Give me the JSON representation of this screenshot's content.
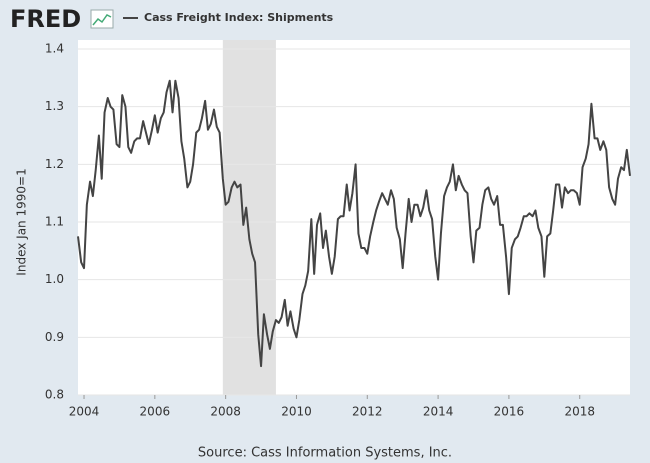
{
  "logo": "FRED",
  "chart_data": {
    "type": "line",
    "y_label": "Index Jan 1990=1",
    "source": "Source: Cass Information Systems, Inc.",
    "xlim": [
      2003.83,
      2019.42
    ],
    "xticks": [
      2004,
      2006,
      2008,
      2010,
      2012,
      2014,
      2016,
      2018
    ],
    "ylim": [
      0.8,
      1.4
    ],
    "yticks": [
      0.8,
      0.9,
      {
        "value": 1,
        "label": "1.0"
      },
      1.1,
      1.2,
      1.3,
      1.4
    ],
    "grid": true,
    "shaded_periods": [
      [
        2007.92,
        2009.42
      ]
    ],
    "x": [
      2003.83,
      2003.92,
      2004.0,
      2004.08,
      2004.17,
      2004.25,
      2004.33,
      2004.42,
      2004.5,
      2004.58,
      2004.67,
      2004.75,
      2004.83,
      2004.92,
      2005.0,
      2005.08,
      2005.17,
      2005.25,
      2005.33,
      2005.42,
      2005.5,
      2005.58,
      2005.67,
      2005.75,
      2005.83,
      2005.92,
      2006.0,
      2006.08,
      2006.17,
      2006.25,
      2006.33,
      2006.42,
      2006.5,
      2006.58,
      2006.67,
      2006.75,
      2006.83,
      2006.92,
      2007.0,
      2007.08,
      2007.17,
      2007.25,
      2007.33,
      2007.42,
      2007.5,
      2007.58,
      2007.67,
      2007.75,
      2007.83,
      2007.92,
      2008.0,
      2008.08,
      2008.17,
      2008.25,
      2008.33,
      2008.42,
      2008.5,
      2008.58,
      2008.67,
      2008.75,
      2008.83,
      2008.92,
      2009.0,
      2009.08,
      2009.17,
      2009.25,
      2009.33,
      2009.42,
      2009.5,
      2009.58,
      2009.67,
      2009.75,
      2009.83,
      2009.92,
      2010.0,
      2010.08,
      2010.17,
      2010.25,
      2010.33,
      2010.42,
      2010.5,
      2010.58,
      2010.67,
      2010.75,
      2010.83,
      2010.92,
      2011.0,
      2011.08,
      2011.17,
      2011.25,
      2011.33,
      2011.42,
      2011.5,
      2011.58,
      2011.67,
      2011.75,
      2011.83,
      2011.92,
      2012.0,
      2012.08,
      2012.17,
      2012.25,
      2012.33,
      2012.42,
      2012.5,
      2012.58,
      2012.67,
      2012.75,
      2012.83,
      2012.92,
      2013.0,
      2013.08,
      2013.17,
      2013.25,
      2013.33,
      2013.42,
      2013.5,
      2013.58,
      2013.67,
      2013.75,
      2013.83,
      2013.92,
      2014.0,
      2014.08,
      2014.17,
      2014.25,
      2014.33,
      2014.42,
      2014.5,
      2014.58,
      2014.67,
      2014.75,
      2014.83,
      2014.92,
      2015.0,
      2015.08,
      2015.17,
      2015.25,
      2015.33,
      2015.42,
      2015.5,
      2015.58,
      2015.67,
      2015.75,
      2015.83,
      2015.92,
      2016.0,
      2016.08,
      2016.17,
      2016.25,
      2016.33,
      2016.42,
      2016.5,
      2016.58,
      2016.67,
      2016.75,
      2016.83,
      2016.92,
      2017.0,
      2017.08,
      2017.17,
      2017.25,
      2017.33,
      2017.42,
      2017.5,
      2017.58,
      2017.67,
      2017.75,
      2017.83,
      2017.92,
      2018.0,
      2018.08,
      2018.17,
      2018.25,
      2018.33,
      2018.42,
      2018.5,
      2018.58,
      2018.67,
      2018.75,
      2018.83,
      2018.92,
      2019.0,
      2019.08,
      2019.17,
      2019.25,
      2019.33,
      2019.42
    ],
    "series": [
      {
        "name": "Cass Freight Index: Shipments",
        "color": "#444444",
        "values": [
          1.075,
          1.03,
          1.02,
          1.13,
          1.17,
          1.145,
          1.19,
          1.25,
          1.175,
          1.29,
          1.315,
          1.3,
          1.295,
          1.235,
          1.23,
          1.32,
          1.3,
          1.23,
          1.22,
          1.24,
          1.245,
          1.245,
          1.275,
          1.255,
          1.235,
          1.26,
          1.285,
          1.255,
          1.28,
          1.29,
          1.325,
          1.345,
          1.29,
          1.345,
          1.315,
          1.24,
          1.21,
          1.16,
          1.17,
          1.2,
          1.255,
          1.26,
          1.28,
          1.31,
          1.26,
          1.27,
          1.295,
          1.265,
          1.255,
          1.175,
          1.13,
          1.135,
          1.16,
          1.17,
          1.16,
          1.165,
          1.095,
          1.125,
          1.07,
          1.045,
          1.03,
          0.905,
          0.85,
          0.94,
          0.905,
          0.88,
          0.91,
          0.93,
          0.925,
          0.935,
          0.965,
          0.92,
          0.945,
          0.915,
          0.9,
          0.93,
          0.975,
          0.99,
          1.015,
          1.105,
          1.01,
          1.095,
          1.115,
          1.055,
          1.085,
          1.04,
          1.01,
          1.04,
          1.105,
          1.11,
          1.11,
          1.165,
          1.12,
          1.15,
          1.2,
          1.08,
          1.055,
          1.055,
          1.045,
          1.075,
          1.1,
          1.12,
          1.135,
          1.15,
          1.14,
          1.13,
          1.155,
          1.14,
          1.09,
          1.07,
          1.02,
          1.08,
          1.14,
          1.1,
          1.13,
          1.13,
          1.11,
          1.125,
          1.155,
          1.12,
          1.105,
          1.04,
          1.0,
          1.08,
          1.145,
          1.16,
          1.17,
          1.2,
          1.155,
          1.18,
          1.165,
          1.155,
          1.15,
          1.075,
          1.03,
          1.085,
          1.09,
          1.13,
          1.155,
          1.16,
          1.14,
          1.13,
          1.145,
          1.095,
          1.095,
          1.04,
          0.975,
          1.055,
          1.07,
          1.075,
          1.09,
          1.11,
          1.11,
          1.115,
          1.11,
          1.12,
          1.09,
          1.075,
          1.005,
          1.075,
          1.08,
          1.12,
          1.165,
          1.165,
          1.125,
          1.16,
          1.15,
          1.155,
          1.155,
          1.15,
          1.13,
          1.195,
          1.21,
          1.235,
          1.305,
          1.245,
          1.245,
          1.225,
          1.24,
          1.225,
          1.16,
          1.14,
          1.13,
          1.175,
          1.195,
          1.19,
          1.225,
          1.18
        ]
      }
    ]
  }
}
